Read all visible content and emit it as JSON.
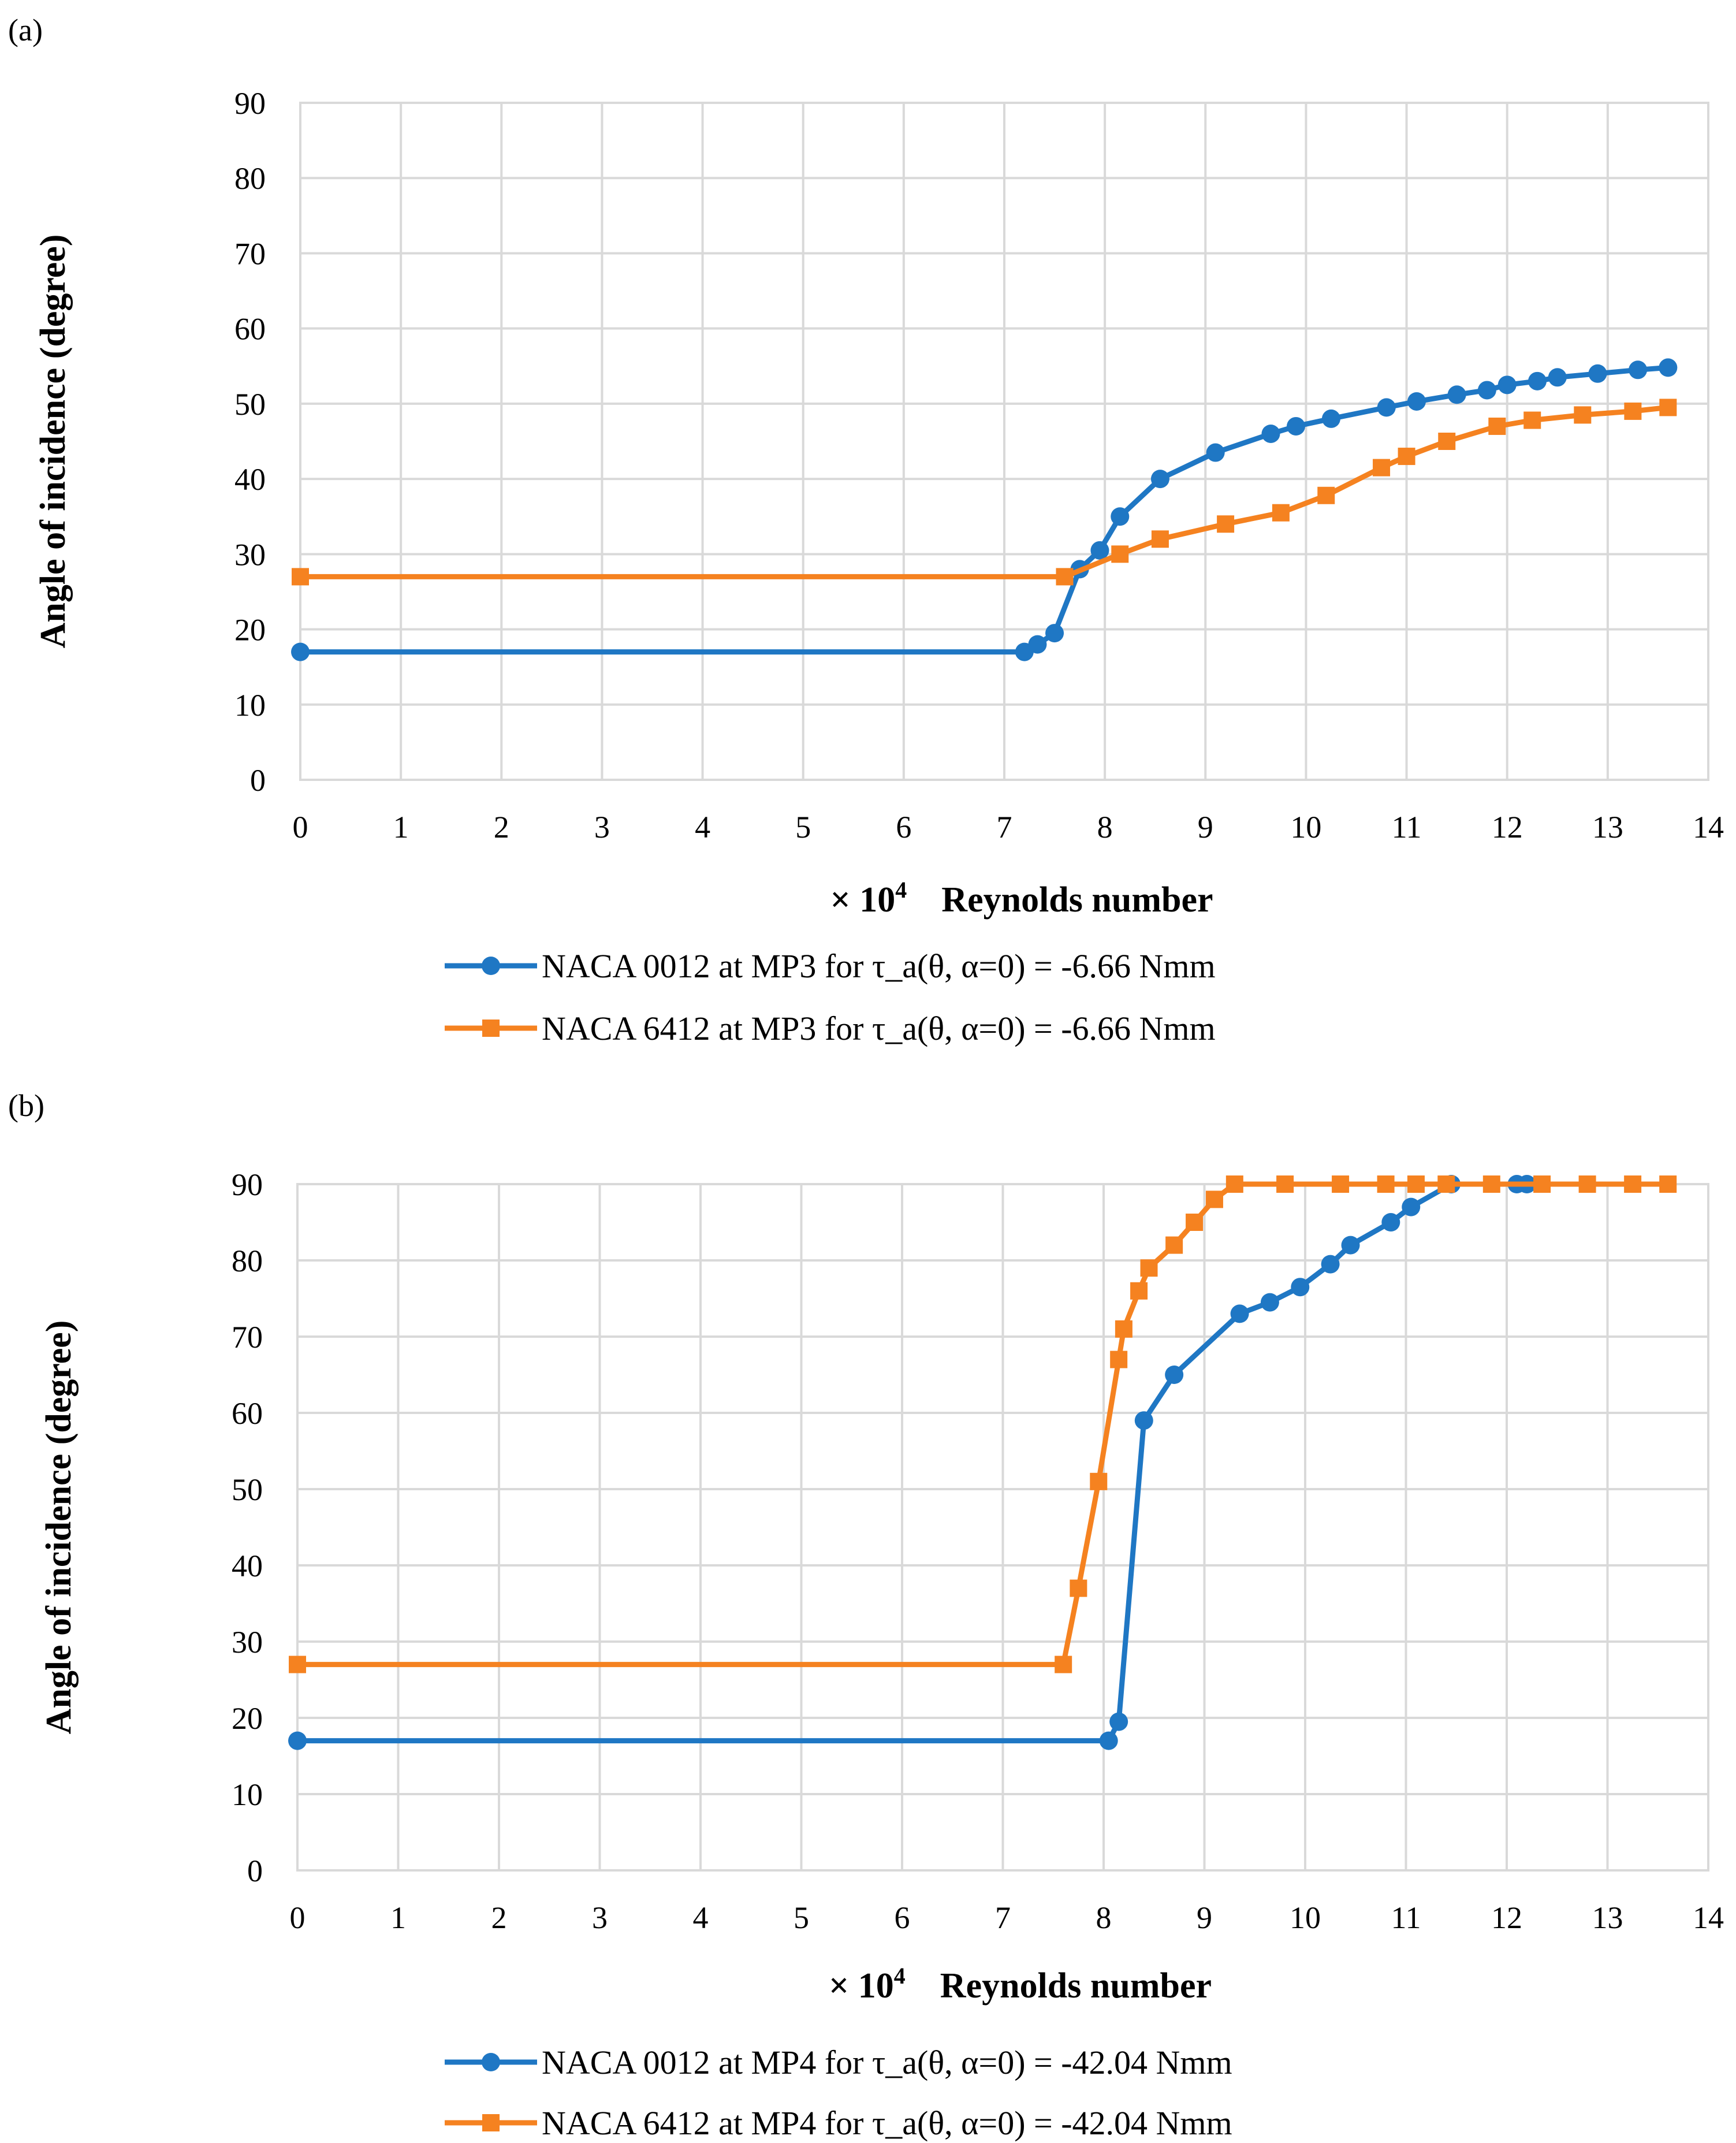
{
  "chart_data": [
    {
      "panel": "(a)",
      "type": "line",
      "xlabel_prefix": "× 10",
      "xlabel_exp": "4",
      "xlabel": "Reynolds number",
      "ylabel": "Angle of incidence (degree)",
      "xlim": [
        0,
        14
      ],
      "ylim": [
        0,
        90
      ],
      "xticks": [
        "0",
        "1",
        "2",
        "3",
        "4",
        "5",
        "6",
        "7",
        "8",
        "9",
        "10",
        "11",
        "12",
        "13",
        "14"
      ],
      "yticks": [
        "0",
        "10",
        "20",
        "30",
        "40",
        "50",
        "60",
        "70",
        "80",
        "90"
      ],
      "grid": true,
      "legend_position": "bottom",
      "series": [
        {
          "name": "NACA 0012 at MP3 for τ_a(θ, α=0) = -6.66 Nmm",
          "color": "#1f77c4",
          "marker": "circle",
          "x": [
            0,
            7.2,
            7.33,
            7.5,
            7.75,
            7.95,
            8.15,
            8.55,
            9.1,
            9.65,
            9.9,
            10.25,
            10.8,
            11.1,
            11.5,
            11.8,
            12.0,
            12.3,
            12.5,
            12.9,
            13.3,
            13.6
          ],
          "y": [
            17,
            17,
            18,
            19.5,
            28,
            30.5,
            35,
            40,
            43.5,
            46,
            47,
            48,
            49.5,
            50.3,
            51.2,
            51.8,
            52.5,
            53,
            53.5,
            54,
            54.5,
            54.8
          ]
        },
        {
          "name": "NACA 6412 at MP3 for τ_a(θ, α=0) = -6.66 Nmm",
          "color": "#f58220",
          "marker": "square",
          "x": [
            0,
            7.6,
            8.15,
            8.55,
            9.2,
            9.75,
            10.2,
            10.75,
            11.0,
            11.4,
            11.9,
            12.25,
            12.75,
            13.25,
            13.6
          ],
          "y": [
            27,
            27,
            30,
            32,
            34,
            35.5,
            37.8,
            41.5,
            43,
            45,
            47,
            47.8,
            48.5,
            49,
            49.5
          ]
        }
      ]
    },
    {
      "panel": "(b)",
      "type": "line",
      "xlabel_prefix": "× 10",
      "xlabel_exp": "4",
      "xlabel": "Reynolds number",
      "ylabel": "Angle of incidence (degree)",
      "xlim": [
        0,
        14
      ],
      "ylim": [
        0,
        90
      ],
      "xticks": [
        "0",
        "1",
        "2",
        "3",
        "4",
        "5",
        "6",
        "7",
        "8",
        "9",
        "10",
        "11",
        "12",
        "13",
        "14"
      ],
      "yticks": [
        "0",
        "10",
        "20",
        "30",
        "40",
        "50",
        "60",
        "70",
        "80",
        "90"
      ],
      "grid": true,
      "legend_position": "bottom",
      "series": [
        {
          "name": "NACA 0012 at MP4 for τ_a(θ, α=0) = -42.04 Nmm",
          "color": "#1f77c4",
          "marker": "circle",
          "x": [
            0,
            8.05,
            8.15,
            8.4,
            8.7,
            9.35,
            9.65,
            9.95,
            10.25,
            10.45,
            10.85,
            11.05,
            11.45,
            12.1,
            12.2
          ],
          "y": [
            17,
            17,
            19.5,
            59,
            65,
            73,
            74.5,
            76.5,
            79.5,
            82,
            85,
            87,
            90,
            90,
            90
          ]
        },
        {
          "name": "NACA 6412 at MP4 for τ_a(θ, α=0) = -42.04 Nmm",
          "color": "#f58220",
          "marker": "square",
          "x": [
            0,
            7.6,
            7.75,
            7.95,
            8.15,
            8.2,
            8.35,
            8.45,
            8.7,
            8.9,
            9.1,
            9.3,
            9.8,
            10.35,
            10.8,
            11.1,
            11.4,
            11.85,
            12.35,
            12.8,
            13.25,
            13.6
          ],
          "y": [
            27,
            27,
            37,
            51,
            67,
            71,
            76,
            79,
            82,
            85,
            88,
            90,
            90,
            90,
            90,
            90,
            90,
            90,
            90,
            90,
            90,
            90
          ]
        }
      ]
    }
  ]
}
